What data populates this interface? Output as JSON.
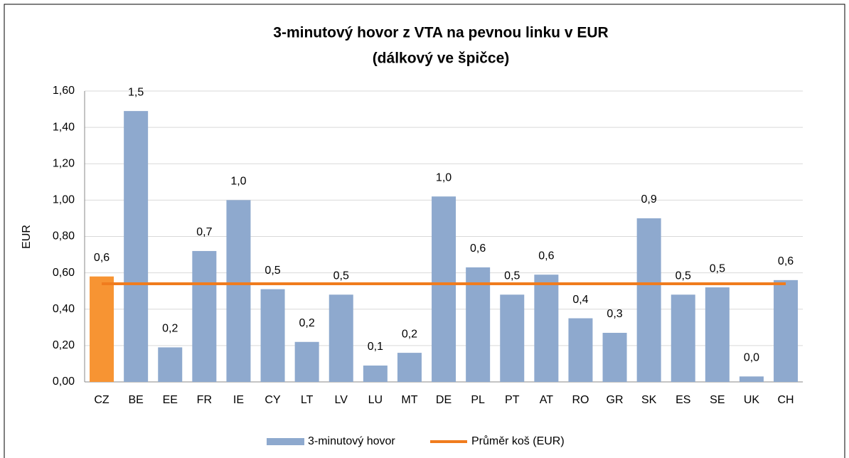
{
  "chart_data": {
    "type": "bar",
    "title": [
      "3-minutový hovor z VTA na pevnou linku v EUR",
      "(dálkový ve špičce)"
    ],
    "y_label": "EUR",
    "categories": [
      "CZ",
      "BE",
      "EE",
      "FR",
      "IE",
      "CY",
      "LT",
      "LV",
      "LU",
      "MT",
      "DE",
      "PL",
      "PT",
      "AT",
      "RO",
      "GR",
      "SK",
      "ES",
      "SE",
      "UK",
      "CH"
    ],
    "series": [
      {
        "name": "3-minutový hovor",
        "type": "bar",
        "color": "#8EA9CE",
        "point_colors": [
          "#F79433",
          "#8EA9CE",
          "#8EA9CE",
          "#8EA9CE",
          "#8EA9CE",
          "#8EA9CE",
          "#8EA9CE",
          "#8EA9CE",
          "#8EA9CE",
          "#8EA9CE",
          "#8EA9CE",
          "#8EA9CE",
          "#8EA9CE",
          "#8EA9CE",
          "#8EA9CE",
          "#8EA9CE",
          "#8EA9CE",
          "#8EA9CE",
          "#8EA9CE",
          "#8EA9CE",
          "#8EA9CE"
        ],
        "values": [
          0.58,
          1.49,
          0.19,
          0.72,
          1.0,
          0.51,
          0.22,
          0.48,
          0.09,
          0.16,
          1.02,
          0.63,
          0.48,
          0.59,
          0.35,
          0.27,
          0.9,
          0.48,
          0.52,
          0.03,
          0.56
        ],
        "value_labels": [
          "0,6",
          "1,5",
          "0,2",
          "0,7",
          "1,0",
          "0,5",
          "0,2",
          "0,5",
          "0,1",
          "0,2",
          "1,0",
          "0,6",
          "0,5",
          "0,6",
          "0,4",
          "0,3",
          "0,9",
          "0,5",
          "0,5",
          "0,0",
          "0,6"
        ]
      },
      {
        "name": "Průměr koš (EUR)",
        "type": "line",
        "color": "#F07C1E",
        "values": [
          0.54,
          0.54,
          0.54,
          0.54,
          0.54,
          0.54,
          0.54,
          0.54,
          0.54,
          0.54,
          0.54,
          0.54,
          0.54,
          0.54,
          0.54,
          0.54,
          0.54,
          0.54,
          0.54,
          0.54,
          0.54
        ]
      }
    ],
    "ylim": [
      0,
      1.6
    ],
    "yticks": [
      {
        "value": 0,
        "label": "0,00"
      },
      {
        "value": 0.2,
        "label": "0,20"
      },
      {
        "value": 0.4,
        "label": "0,40"
      },
      {
        "value": 0.6,
        "label": "0,60"
      },
      {
        "value": 0.8,
        "label": "0,80"
      },
      {
        "value": 1.0,
        "label": "1,00"
      },
      {
        "value": 1.2,
        "label": "1,20"
      },
      {
        "value": 1.4,
        "label": "1,40"
      },
      {
        "value": 1.6,
        "label": "1,60"
      }
    ],
    "grid": true,
    "legend": "bottom"
  }
}
